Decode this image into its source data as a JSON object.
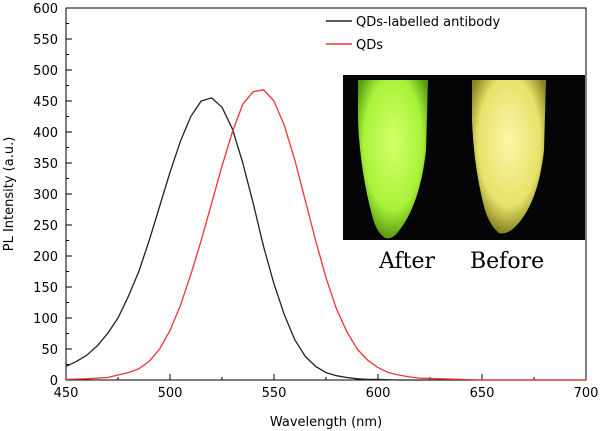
{
  "chart_data": {
    "type": "line",
    "xlabel": "Wavelength (nm)",
    "ylabel": "PL Intensity (a.u.)",
    "xlim": [
      450,
      700
    ],
    "ylim": [
      0,
      600
    ],
    "x_ticks": [
      450,
      500,
      550,
      600,
      650,
      700
    ],
    "y_ticks": [
      0,
      50,
      100,
      150,
      200,
      250,
      300,
      350,
      400,
      450,
      500,
      550,
      600
    ],
    "legend_position": "top-right",
    "grid": false,
    "series": [
      {
        "name": "QDs-labelled antibody",
        "color": "#222222",
        "x": [
          450,
          455,
          460,
          465,
          470,
          475,
          480,
          485,
          490,
          495,
          500,
          505,
          510,
          515,
          520,
          525,
          530,
          535,
          540,
          545,
          550,
          555,
          560,
          565,
          570,
          575,
          580,
          585,
          590,
          595,
          600,
          610,
          620,
          630,
          640,
          650,
          660,
          670,
          680,
          690,
          700
        ],
        "y": [
          22,
          30,
          40,
          55,
          75,
          100,
          135,
          175,
          225,
          280,
          335,
          385,
          425,
          450,
          455,
          440,
          405,
          350,
          285,
          215,
          155,
          105,
          65,
          38,
          22,
          12,
          7,
          4,
          2,
          1,
          1,
          0,
          0,
          0,
          0,
          0,
          0,
          0,
          0,
          0,
          0
        ]
      },
      {
        "name": "QDs",
        "color": "#ee3333",
        "x": [
          450,
          460,
          470,
          475,
          480,
          485,
          490,
          495,
          500,
          505,
          510,
          515,
          520,
          525,
          530,
          535,
          540,
          545,
          550,
          555,
          560,
          565,
          570,
          575,
          580,
          585,
          590,
          595,
          600,
          605,
          610,
          615,
          620,
          630,
          640,
          650,
          660,
          670,
          680,
          690,
          700
        ],
        "y": [
          1,
          2,
          4,
          8,
          12,
          18,
          30,
          50,
          80,
          120,
          170,
          225,
          285,
          345,
          400,
          445,
          465,
          468,
          450,
          410,
          355,
          290,
          225,
          165,
          115,
          78,
          50,
          32,
          20,
          12,
          8,
          5,
          3,
          2,
          1,
          0,
          0,
          0,
          0,
          0,
          0
        ]
      }
    ]
  },
  "inset": {
    "after_label": "After",
    "before_label": "Before",
    "after_color": "#a8f23a",
    "before_color": "#e6e26a",
    "background": "#050505"
  }
}
